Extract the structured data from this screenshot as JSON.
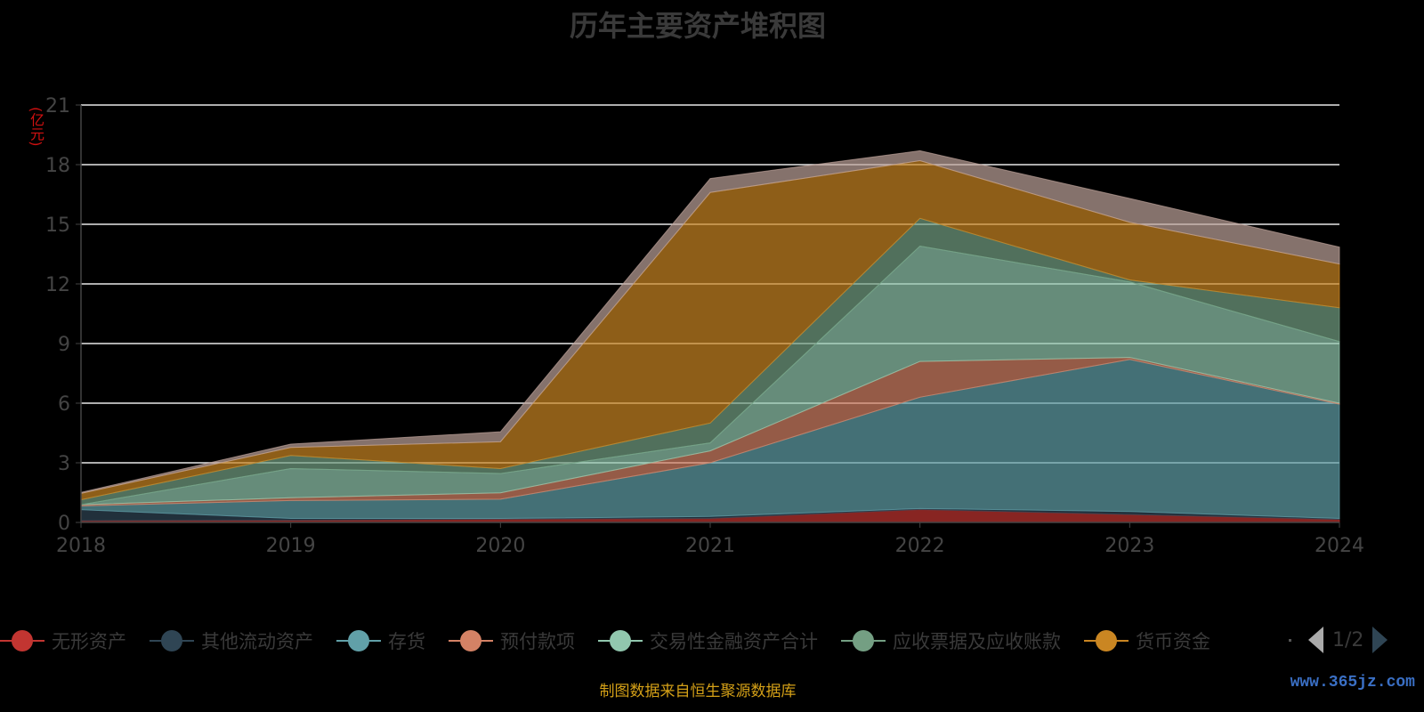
{
  "chart_data": {
    "type": "area",
    "stacked": true,
    "title": "历年主要资产堆积图",
    "ylabel": "(亿元)",
    "xlabel": "",
    "ylim": [
      0,
      21
    ],
    "yticks": [
      0,
      3,
      6,
      9,
      12,
      15,
      18,
      21
    ],
    "categories": [
      "2018",
      "2019",
      "2020",
      "2021",
      "2022",
      "2023",
      "2024"
    ],
    "grid": true,
    "legend_placement": "bottom",
    "series": [
      {
        "name": "无形资产",
        "color": "#c23531",
        "values": [
          0.09,
          0.11,
          0.17,
          0.2,
          0.65,
          0.4,
          0.15
        ]
      },
      {
        "name": "其他流动资产",
        "color": "#2f4554",
        "values": [
          0.55,
          0.09,
          0.03,
          0.1,
          0.05,
          0.15,
          0.05
        ]
      },
      {
        "name": "存货",
        "color": "#61a0a8",
        "values": [
          0.19,
          0.9,
          0.97,
          2.7,
          5.6,
          7.65,
          5.75
        ]
      },
      {
        "name": "预付款项",
        "color": "#d48265",
        "values": [
          0.06,
          0.14,
          0.32,
          0.6,
          1.8,
          0.1,
          0.05
        ]
      },
      {
        "name": "交易性金融资产合计",
        "color": "#91c7ae",
        "values": [
          0.0,
          1.47,
          0.97,
          0.4,
          5.8,
          3.8,
          3.1
        ]
      },
      {
        "name": "应收票据及应收账款",
        "color": "#749f83",
        "values": [
          0.25,
          0.66,
          0.25,
          1.0,
          1.4,
          0.1,
          1.7
        ]
      },
      {
        "name": "货币资金",
        "color": "#ca8622",
        "values": [
          0.32,
          0.4,
          1.35,
          11.6,
          2.9,
          2.9,
          2.2
        ]
      },
      {
        "name": "",
        "color": "#bda29a",
        "values": [
          0.05,
          0.17,
          0.5,
          0.7,
          0.5,
          1.2,
          0.85
        ]
      }
    ]
  },
  "legend": {
    "page": "1/2"
  },
  "source": "制图数据来自恒生聚源数据库",
  "watermark": "www.365jz.com"
}
